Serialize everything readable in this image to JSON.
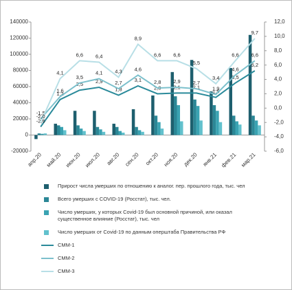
{
  "chart_data": {
    "type": "combo",
    "categories": [
      "апр.20",
      "май.20",
      "июн.20",
      "июл.20",
      "авг.20",
      "сен.20",
      "окт.20",
      "ноя.20",
      "дек.20",
      "янв.21",
      "фев.21",
      "мар.21"
    ],
    "ylim": [
      -20000,
      140000
    ],
    "yticks": [
      -20000,
      0,
      20000,
      40000,
      60000,
      80000,
      100000,
      120000,
      140000
    ],
    "y2lim": [
      -6,
      12
    ],
    "y2ticks": [
      {
        "value": -6,
        "label": "-6,0"
      },
      {
        "value": -4,
        "label": "-4,0"
      },
      {
        "value": -2,
        "label": "-2,0"
      },
      {
        "value": 0,
        "label": "0,0"
      },
      {
        "value": 2,
        "label": "2,0"
      },
      {
        "value": 4,
        "label": "4,0"
      },
      {
        "value": 6,
        "label": "6,0"
      },
      {
        "value": 8,
        "label": "8,0"
      },
      {
        "value": 10,
        "label": "10,0"
      },
      {
        "value": 12,
        "label": "12,0"
      }
    ],
    "series": [
      {
        "name": "Прирост числа умерших по отношению к аналог. пер. прошлого года, тыс. чел",
        "type": "bar",
        "color": "#1e5f6e",
        "values": [
          -5000,
          14000,
          30000,
          30000,
          14000,
          32000,
          49000,
          78000,
          93000,
          54000,
          83000,
          124000
        ]
      },
      {
        "name": "Всего умерших с COVID-19 (Росстат), тыс. чел.",
        "type": "bar",
        "color": "#2b8796",
        "values": [
          2000,
          12000,
          12000,
          10000,
          10000,
          10000,
          24000,
          48000,
          44000,
          37000,
          24000,
          24000
        ]
      },
      {
        "name": "Число умерших, у которых Covid-19 был основной причиной, или оказал существенное влияние (Росстат), тыс. чел",
        "type": "bar",
        "color": "#3aa3b2",
        "values": [
          1500,
          10000,
          8000,
          7000,
          5000,
          6000,
          16000,
          37000,
          36000,
          30000,
          17000,
          18000
        ]
      },
      {
        "name": "Число умерших от Covid-19 по данным оперштаба Правительства РФ",
        "type": "bar",
        "color": "#62c1cd",
        "values": [
          2000,
          6000,
          5000,
          4000,
          3000,
          4000,
          8000,
          17000,
          18000,
          16000,
          13000,
          12000
        ]
      },
      {
        "name": "СММ-1",
        "type": "line",
        "axis": "y2",
        "color": "#2a8a9a",
        "values": [
          -2.6,
          1.2,
          2.5,
          2.9,
          1.8,
          3.1,
          2.0,
          2.1,
          2.1,
          1.5,
          3.5,
          5.2
        ],
        "value_labels": [
          "-2,6",
          "1,2",
          "2,5",
          "2,9",
          "1,8",
          "3,1",
          "2,0",
          "2,1",
          "2,1",
          "1,5",
          "3,5",
          "5,2"
        ]
      },
      {
        "name": "СММ-2",
        "type": "line",
        "axis": "y2",
        "color": "#7cc0cc",
        "values": [
          -1.5,
          1.6,
          3.5,
          4.1,
          2.7,
          4.6,
          2.8,
          2.9,
          2.7,
          1.9,
          4.6,
          6.6
        ],
        "value_labels": [
          "-1,5",
          "1,6",
          "3,5",
          "4,1",
          "2,7",
          "4,6",
          "2,8",
          "2,9",
          "2,7",
          "1,9",
          "4,6",
          "6,6"
        ]
      },
      {
        "name": "СММ-3",
        "type": "line",
        "axis": "y2",
        "color": "#b8dfe6",
        "values": [
          -2.0,
          4.1,
          6.6,
          6.4,
          4.3,
          8.9,
          6.6,
          6.6,
          5.5,
          3.4,
          6.6,
          9.7
        ],
        "value_labels": [
          "-2,0",
          "4,1",
          "6,6",
          "6,4",
          "4,3",
          "8,9",
          "6,6",
          "6,6",
          "5,5",
          "3,4",
          "6,6",
          "9,7"
        ]
      }
    ]
  }
}
